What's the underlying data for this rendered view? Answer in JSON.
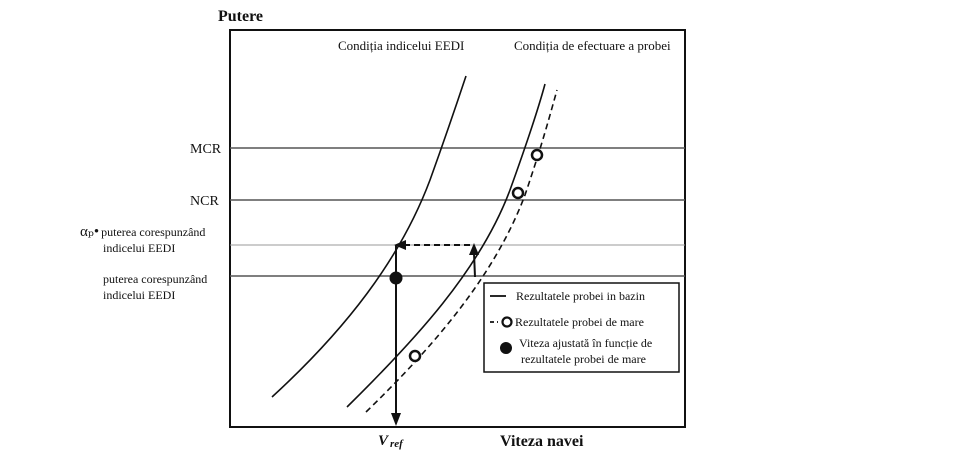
{
  "axes": {
    "y_label": "Putere",
    "x_label": "Viteza navei",
    "x_marker": "V",
    "x_marker_sub": "ref"
  },
  "curve_labels": {
    "eedi": "Condiția indicelui EEDI",
    "sea_trial": "Condiția de efectuare a probei"
  },
  "levels": {
    "mcr": "MCR",
    "ncr": "NCR",
    "alpha_prefix": "αₚ•",
    "alpha_line1": "puterea corespunzând",
    "alpha_line2": "indicelui EEDI",
    "eedi_line1": "puterea corespunzând",
    "eedi_line2": "indicelui EEDI"
  },
  "legend": {
    "tank": "Rezultatele probei in bazin",
    "sea": "Rezultatele probei de mare",
    "adjusted_line1": "Viteza ajustată în funcție de",
    "adjusted_line2": "rezultatele probei de mare"
  },
  "colors": {
    "line": "#111111",
    "gridline": "#555555",
    "faint": "#999999"
  }
}
